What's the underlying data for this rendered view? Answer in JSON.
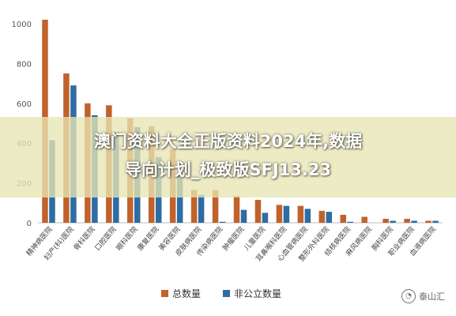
{
  "overlay": {
    "line1": "澳门资料大全正版资料2024年,数据",
    "line2": "导向计划_极致版SFJ13.23"
  },
  "watermark": {
    "text": "泰山汇",
    "icon": "wechat-icon"
  },
  "chart_data": {
    "type": "bar",
    "categories": [
      "精神病医院",
      "妇产(科)医院",
      "骨科医院",
      "口腔医院",
      "眼科医院",
      "康复医院",
      "美容医院",
      "皮肤病医院",
      "传染病医院",
      "肿瘤医院",
      "儿童医院",
      "耳鼻喉科医院",
      "心血管病医院",
      "整形外科医院",
      "结核病医院",
      "麻风病医院",
      "胸科医院",
      "职业病医院",
      "血液病医院"
    ],
    "series": [
      {
        "name": "总数量",
        "color": "#c0622b",
        "values": [
          1020,
          750,
          600,
          590,
          525,
          485,
          370,
          165,
          165,
          135,
          115,
          90,
          85,
          60,
          40,
          30,
          20,
          20,
          10
        ]
      },
      {
        "name": "非公立数量",
        "color": "#2e6ca4",
        "values": [
          415,
          690,
          540,
          455,
          480,
          330,
          240,
          140,
          5,
          65,
          50,
          85,
          70,
          55,
          5,
          0,
          10,
          10,
          10
        ]
      }
    ],
    "ylim": [
      0,
      1000
    ],
    "yticks": [
      0,
      200,
      400,
      600,
      800,
      1000
    ],
    "grid": false,
    "legend_position": "bottom"
  }
}
